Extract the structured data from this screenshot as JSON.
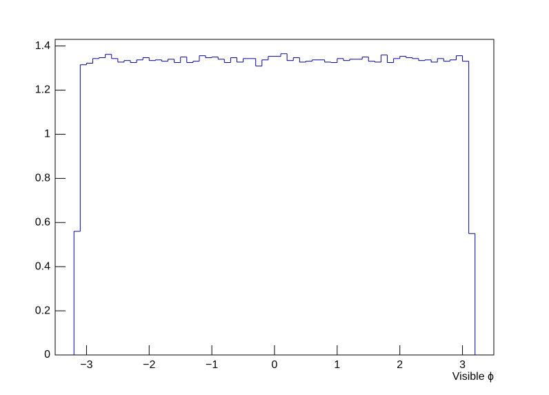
{
  "chart_data": {
    "type": "histogram",
    "x_label": "Visible ϕ",
    "color": "#000099",
    "bins": [
      -3.2,
      -3.1,
      -3.0,
      -2.9,
      -2.8,
      -2.7,
      -2.6,
      -2.5,
      -2.4,
      -2.3,
      -2.2,
      -2.1,
      -2.0,
      -1.9,
      -1.8,
      -1.7,
      -1.6,
      -1.5,
      -1.4,
      -1.3,
      -1.2,
      -1.1,
      -1.0,
      -0.9,
      -0.8,
      -0.7,
      -0.6,
      -0.5,
      -0.4,
      -0.3,
      -0.2,
      -0.1,
      0,
      0.1,
      0.2,
      0.3,
      0.4,
      0.5,
      0.6,
      0.7,
      0.8,
      0.9,
      1.0,
      1.1,
      1.2,
      1.3,
      1.4,
      1.5,
      1.6,
      1.7,
      1.8,
      1.9,
      2.0,
      2.1,
      2.2,
      2.3,
      2.4,
      2.5,
      2.6,
      2.7,
      2.8,
      2.9,
      3.0,
      3.1,
      3.2
    ],
    "counts": [
      0.56,
      1.315,
      1.322,
      1.343,
      1.347,
      1.362,
      1.343,
      1.327,
      1.334,
      1.325,
      1.337,
      1.347,
      1.334,
      1.337,
      1.331,
      1.34,
      1.325,
      1.35,
      1.325,
      1.331,
      1.356,
      1.347,
      1.35,
      1.34,
      1.325,
      1.347,
      1.327,
      1.343,
      1.343,
      1.309,
      1.337,
      1.353,
      1.353,
      1.365,
      1.334,
      1.347,
      1.327,
      1.331,
      1.337,
      1.337,
      1.327,
      1.325,
      1.343,
      1.334,
      1.34,
      1.34,
      1.35,
      1.331,
      1.327,
      1.359,
      1.325,
      1.343,
      1.353,
      1.347,
      1.343,
      1.334,
      1.337,
      1.327,
      1.343,
      1.331,
      1.337,
      1.356,
      1.331,
      0.55
    ],
    "xlim": [
      -3.5,
      3.5
    ],
    "ylim": [
      0,
      1.43
    ],
    "xticks": [
      {
        "value": -3,
        "label": "−3"
      },
      {
        "value": -2,
        "label": "−2"
      },
      {
        "value": -1,
        "label": "−1"
      },
      0,
      1,
      2,
      3
    ],
    "yticks": [
      0,
      0.2,
      0.4,
      0.6,
      0.8,
      1,
      1.2,
      1.4
    ]
  }
}
